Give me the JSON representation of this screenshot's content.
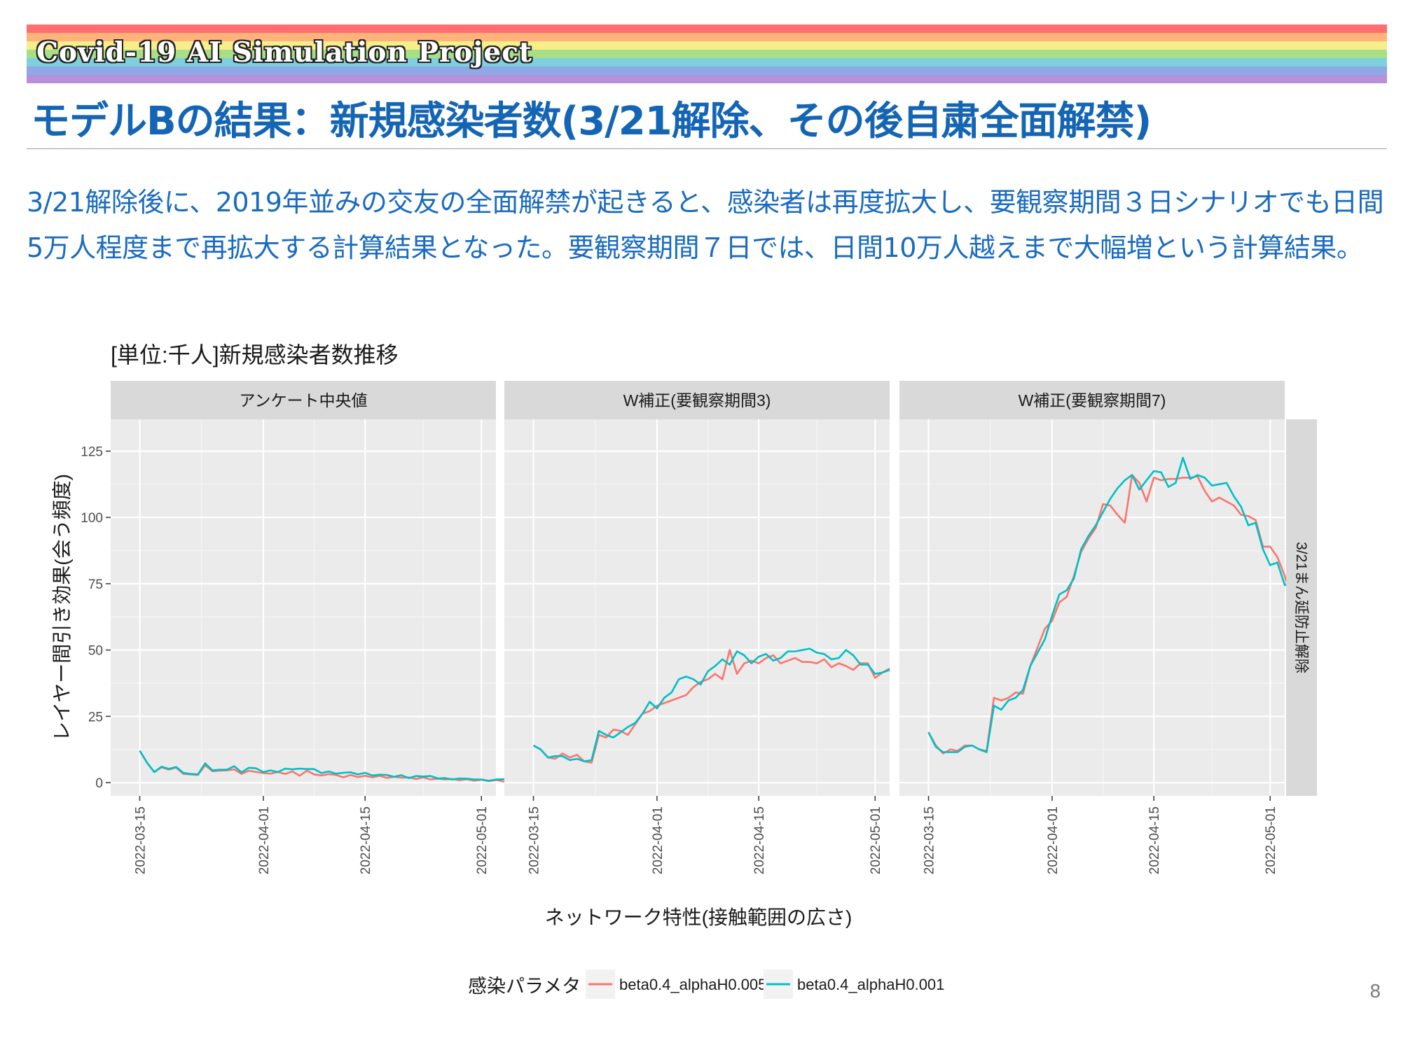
{
  "header": {
    "project": "Covid-19 AI Simulation Project",
    "title": "モデルBの結果：新規感染者数(3/21解除、その後自粛全面解禁)",
    "rainbow_colors": [
      "#ff6f6f",
      "#ffb37a",
      "#f5ee8a",
      "#a8de86",
      "#7fd0dd",
      "#8fa8e6",
      "#b690d8"
    ]
  },
  "summary": {
    "line1": "3/21解除後に、2019年並みの交友の全面解禁が起きると、感染者は再度拡大し、要観察期間３日シナリオでも日間",
    "line2": "5万人程度まで再拡大する計算結果となった。要観察期間７日では、日間10万人越えまで大幅増という計算結果。"
  },
  "page_number": "8",
  "chart_data": {
    "type": "line",
    "title": "[単位:千人]新規感染者数推移",
    "xlabel": "ネットワーク特性(接触範囲の広さ)",
    "ylabel": "レイヤー間引き効果(会う頻度)",
    "ylim": [
      -5,
      137
    ],
    "yticks": [
      0,
      25,
      50,
      75,
      100,
      125
    ],
    "x_start": "2022-03-15",
    "xlim": [
      "2022-03-11",
      "2022-05-03"
    ],
    "xticks": [
      "2022-03-15",
      "2022-04-01",
      "2022-04-15",
      "2022-05-01"
    ],
    "row_strip": "3/21まん延防止解除",
    "legend": {
      "title": "感染パラメタ",
      "position": "bottom"
    },
    "grid": true,
    "series_colors": [
      "#f8766d",
      "#00bfc4"
    ],
    "series_names": [
      "beta0.4_alphaH0.005",
      "beta0.4_alphaH0.001"
    ],
    "panels": [
      {
        "label": "アンケート中央値",
        "series": [
          {
            "name": "beta0.4_alphaH0.005",
            "values": [
              12,
              7.5,
              4,
              5.8,
              4.9,
              5.7,
              3.3,
              3.1,
              2.9,
              6.5,
              4.3,
              4.5,
              4.6,
              5.0,
              3.3,
              4.5,
              4.0,
              3.6,
              3.4,
              4.0,
              3.3,
              4.2,
              2.6,
              4.5,
              3.1,
              2.7,
              3.2,
              2.9,
              2.0,
              2.9,
              2.1,
              2.6,
              2.0,
              2.6,
              1.8,
              2.2,
              1.9,
              2.0,
              1.4,
              2.0,
              1.2,
              1.5,
              1.2,
              1.4,
              0.9,
              1.3,
              0.7,
              1.1,
              0.6,
              1.0,
              0.5,
              0.3
            ]
          },
          {
            "name": "beta0.4_alphaH0.001",
            "values": [
              12,
              7.5,
              4,
              6.0,
              5.2,
              5.9,
              3.7,
              3.3,
              3.1,
              7.3,
              4.6,
              4.9,
              4.9,
              6.2,
              3.9,
              5.6,
              5.4,
              4.0,
              4.6,
              4.0,
              5.3,
              5.0,
              5.3,
              5.1,
              5.1,
              3.6,
              4.2,
              3.4,
              3.7,
              3.9,
              3.1,
              3.7,
              2.7,
              3.0,
              2.9,
              2.2,
              2.8,
              1.7,
              2.5,
              2.3,
              2.5,
              1.6,
              1.7,
              1.2,
              1.6,
              1.5,
              1.2,
              1.2,
              0.7,
              1.2,
              1.3,
              1.3
            ]
          }
        ]
      },
      {
        "label": "W補正(要観察期間3)",
        "series": [
          {
            "name": "beta0.4_alphaH0.005",
            "values": [
              14,
              12.5,
              9.5,
              9,
              11,
              9.5,
              10.5,
              8,
              7.5,
              18,
              17,
              20,
              19.5,
              18,
              22,
              26,
              27,
              29,
              30,
              31,
              32,
              33,
              36,
              38,
              39,
              41,
              39,
              50,
              41,
              45,
              46,
              45,
              47,
              48,
              45,
              46,
              47,
              45.5,
              45.5,
              45,
              46.5,
              43.5,
              45,
              44,
              42.5,
              45,
              45,
              39.5,
              41.5,
              43
            ]
          },
          {
            "name": "beta0.4_alphaH0.001",
            "values": [
              14,
              12.5,
              9.5,
              10,
              10,
              8.5,
              9,
              8,
              8.5,
              19.5,
              18,
              17,
              19,
              21,
              22.5,
              26,
              30.5,
              28,
              32,
              34,
              39,
              40,
              39,
              37,
              42,
              44,
              46.5,
              44.5,
              49.5,
              48,
              45,
              47.5,
              48.5,
              46,
              47,
              49.5,
              49.5,
              50,
              50.5,
              49,
              48.5,
              46.5,
              47,
              50,
              48,
              44.5,
              44.5,
              41,
              41.5,
              42.5
            ]
          }
        ]
      },
      {
        "label": "W補正(要観察期間7)",
        "series": [
          {
            "name": "beta0.4_alphaH0.005",
            "values": [
              19,
              14,
              11,
              12.5,
              12,
              14,
              14,
              12.5,
              12,
              32,
              31,
              32,
              34,
              33.5,
              44,
              51,
              58,
              61,
              68,
              70,
              78,
              87,
              92,
              96,
              105,
              104.5,
              101,
              98,
              116,
              113,
              106,
              115,
              114,
              114.5,
              114.5,
              115,
              115,
              115.5,
              110,
              106,
              107.5,
              106,
              104.5,
              101,
              100.5,
              99,
              89,
              89,
              85,
              78,
              68
            ]
          },
          {
            "name": "beta0.4_alphaH0.001",
            "values": [
              19,
              13.5,
              11.5,
              11.5,
              11.5,
              13.5,
              14,
              12.5,
              11.5,
              29,
              27.5,
              31,
              32,
              35,
              44,
              49,
              54,
              63,
              71,
              72.5,
              77,
              88,
              93,
              97,
              102,
              107,
              111,
              114,
              116,
              110.5,
              114,
              117.5,
              117,
              111.5,
              113,
              122.5,
              114.5,
              116,
              115,
              112,
              112.5,
              113,
              108,
              104,
              97,
              98,
              88,
              82,
              83,
              74.5,
              74.5
            ]
          }
        ]
      }
    ]
  }
}
